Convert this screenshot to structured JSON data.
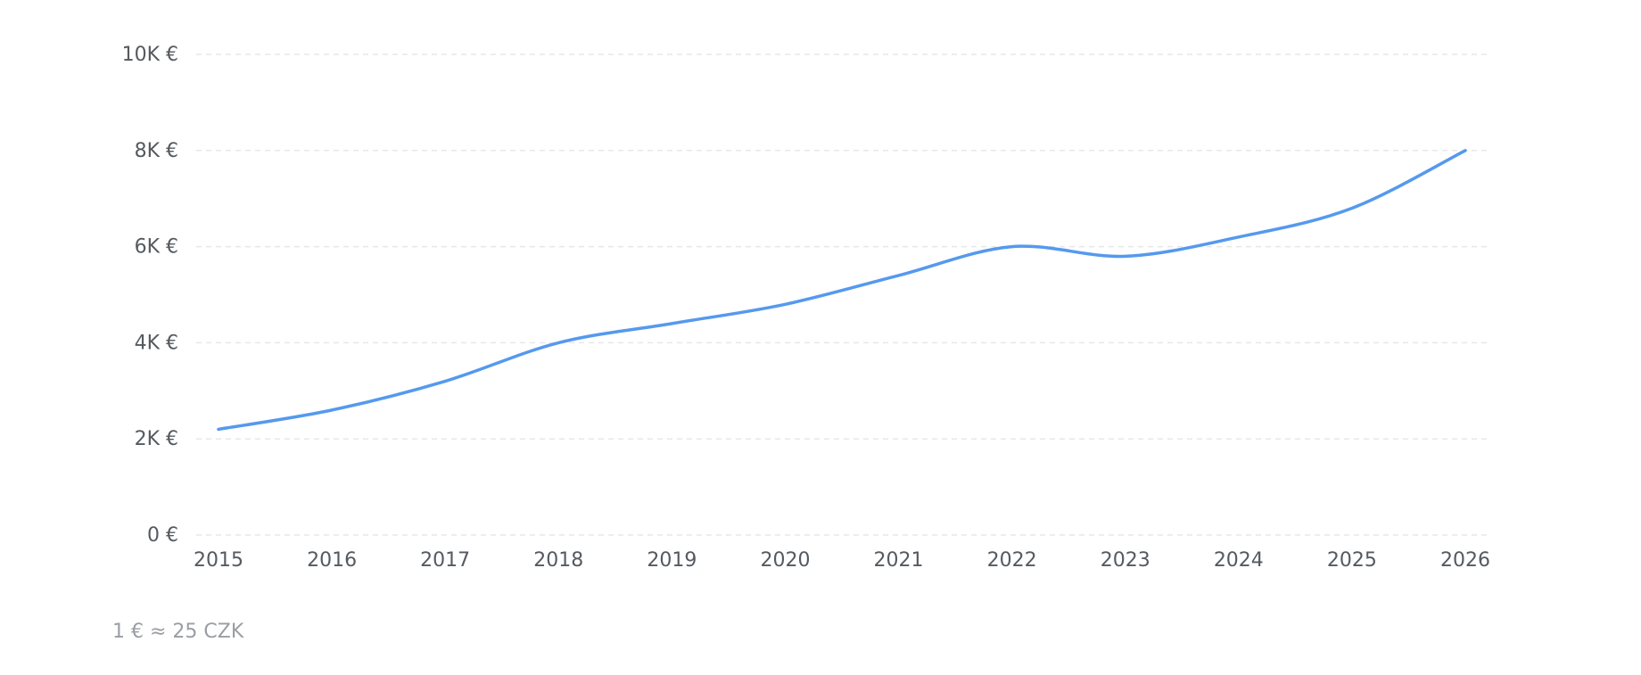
{
  "chart_data": {
    "type": "line",
    "x": [
      2015,
      2016,
      2017,
      2018,
      2019,
      2020,
      2021,
      2022,
      2023,
      2024,
      2025,
      2026
    ],
    "series": [
      {
        "color": "#5599ee",
        "values": [
          2200,
          2600,
          3200,
          4000,
          4400,
          4800,
          5400,
          6000,
          5800,
          6200,
          6800,
          8000
        ]
      }
    ],
    "xlim": [
      2015,
      2026
    ],
    "ylim": [
      0,
      10000
    ],
    "yticks": [
      {
        "value": 0,
        "label": "0 €"
      },
      {
        "value": 2000,
        "label": "2K €"
      },
      {
        "value": 4000,
        "label": "4K €"
      },
      {
        "value": 6000,
        "label": "6K €"
      },
      {
        "value": 8000,
        "label": "8K €"
      },
      {
        "value": 10000,
        "label": "10K €"
      }
    ],
    "grid": true,
    "annotation": "1 € ≈ 25 CZK"
  }
}
